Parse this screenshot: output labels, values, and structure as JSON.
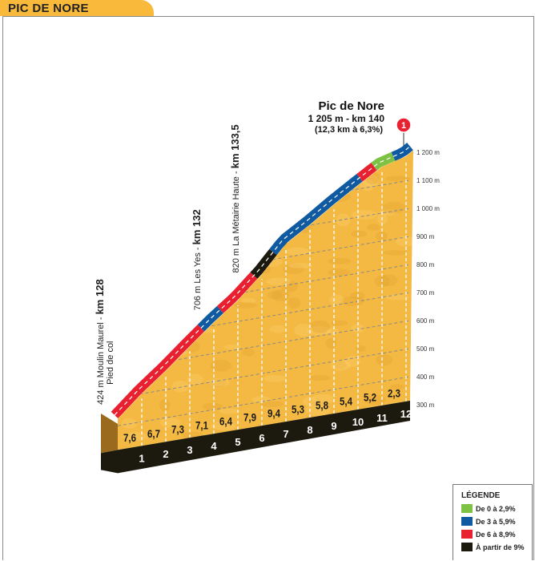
{
  "header": {
    "title": "PIC DE NORE"
  },
  "chart_data": {
    "type": "area",
    "title": "Pic de Nore",
    "summit": {
      "name": "Pic de Nore",
      "line1": "1 205 m - km 140",
      "line2": "(12,3 km à 6,3%)",
      "marker": "1",
      "elevation": 1205,
      "km": 12.3
    },
    "start_elevation": 424,
    "km_ticks": [
      "1",
      "2",
      "3",
      "4",
      "5",
      "6",
      "7",
      "8",
      "9",
      "10",
      "11",
      "12"
    ],
    "gradients": [
      "7,6",
      "6,7",
      "7,3",
      "7,1",
      "6,4",
      "7,9",
      "9,4",
      "5,3",
      "5,8",
      "5,4",
      "5,2",
      "2,3"
    ],
    "gradient_values": [
      7.6,
      6.7,
      7.3,
      7.1,
      6.4,
      7.9,
      9.4,
      5.3,
      5.8,
      5.4,
      5.2,
      2.3
    ],
    "y_ticks": [
      "300 m",
      "400 m",
      "500 m",
      "600 m",
      "700 m",
      "800 m",
      "900 m",
      "1 000 m",
      "1 100 m",
      "1 200 m"
    ],
    "y_values": [
      300,
      400,
      500,
      600,
      700,
      800,
      900,
      1000,
      1100,
      1200
    ],
    "ylim": [
      300,
      1200
    ],
    "xlim": [
      0,
      12.3
    ],
    "segments": [
      {
        "from": 0,
        "to": 3.6,
        "class": "red"
      },
      {
        "from": 3.6,
        "to": 4.4,
        "class": "blue"
      },
      {
        "from": 4.4,
        "to": 5.8,
        "class": "red"
      },
      {
        "from": 5.8,
        "to": 6.6,
        "class": "black"
      },
      {
        "from": 6.6,
        "to": 10.2,
        "class": "blue"
      },
      {
        "from": 10.2,
        "to": 10.8,
        "class": "red"
      },
      {
        "from": 10.8,
        "to": 11.6,
        "class": "green"
      },
      {
        "from": 11.6,
        "to": 12.3,
        "class": "blue"
      }
    ],
    "annotations": [
      {
        "km": 0,
        "normal": "424 m Moulin Maurel - ",
        "bold": "km 128",
        "sub": "Pied de col"
      },
      {
        "km": 3.9,
        "normal": "706 m Les Yes - ",
        "bold": "km 132",
        "sub": ""
      },
      {
        "km": 5.5,
        "normal": "820 m La Métairie Haute - ",
        "bold": "km 133,5",
        "sub": ""
      }
    ]
  },
  "legend": {
    "title": "LÉGENDE",
    "items": [
      {
        "label": "De 0 à 2,9%",
        "key": "green"
      },
      {
        "label": "De 3 à 5,9%",
        "key": "blue"
      },
      {
        "label": "De 6 à 8,9%",
        "key": "red"
      },
      {
        "label": "À partir de 9%",
        "key": "black"
      }
    ]
  },
  "colors": {
    "green": "#7dc242",
    "blue": "#0f5aa0",
    "red": "#e8202f",
    "black": "#1c1a0e",
    "yellow": "#f4b942",
    "brown": "#9a6b1f",
    "tab": "#f9b93b"
  }
}
